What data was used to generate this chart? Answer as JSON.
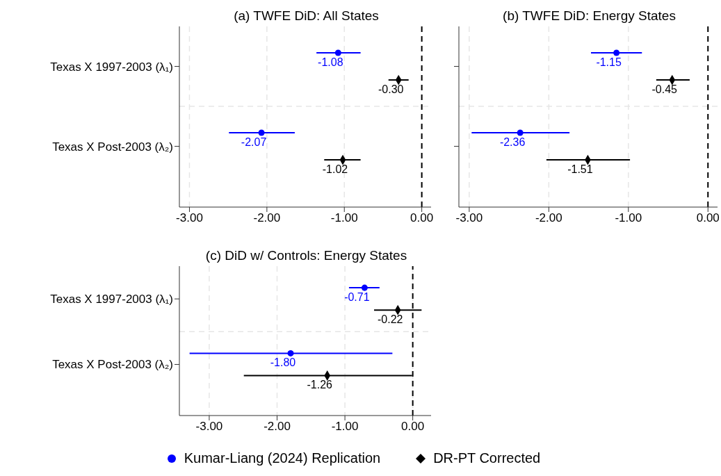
{
  "chart_data": [
    {
      "type": "scatter",
      "orientation": "horizontal",
      "title": "(a) TWFE DiD: All States",
      "categories": [
        "Texas X 1997-2003 (λ₁)",
        "Texas X Post-2003 (λ₂)"
      ],
      "xlim": [
        -3.13,
        0.12
      ],
      "xticks": [
        {
          "value": -3,
          "label": "-3.00"
        },
        {
          "value": -2,
          "label": "-2.00"
        },
        {
          "value": -1,
          "label": "-1.00"
        },
        {
          "value": 0,
          "label": "0.00"
        }
      ],
      "grid": true,
      "legend": "bottom",
      "ref_lines": [
        {
          "axis": "x",
          "value": 0,
          "color": "#000000",
          "line_style": "dashed"
        }
      ],
      "series": [
        {
          "name": "Kumar-Liang (2024) Replication",
          "color": "#0000ff",
          "marker": "circle",
          "values": [
            -1.08,
            -2.07
          ],
          "errors": [
            [
              -1.36,
              -0.79
            ],
            [
              -2.49,
              -1.64
            ]
          ],
          "value_labels": [
            "-1.08",
            "-2.07"
          ]
        },
        {
          "name": "DR-PT Corrected",
          "color": "#000000",
          "marker": "diamond",
          "values": [
            -0.3,
            -1.02
          ],
          "errors": [
            [
              -0.43,
              -0.17
            ],
            [
              -1.26,
              -0.79
            ]
          ],
          "value_labels": [
            "-0.30",
            "-1.02"
          ]
        }
      ]
    },
    {
      "type": "scatter",
      "orientation": "horizontal",
      "title": "(b) TWFE DiD: Energy States",
      "categories": [
        null,
        null
      ],
      "tick_labels": "x",
      "xlim": [
        -3.13,
        0.12
      ],
      "xticks": [
        {
          "value": -3,
          "label": "-3.00"
        },
        {
          "value": -2,
          "label": "-2.00"
        },
        {
          "value": -1,
          "label": "-1.00"
        },
        {
          "value": 0,
          "label": "0.00"
        }
      ],
      "grid": true,
      "ref_lines": [
        {
          "axis": "x",
          "value": 0,
          "color": "#000000",
          "line_style": "dashed"
        }
      ],
      "series": [
        {
          "color": "#0000ff",
          "marker": "circle",
          "values": [
            -1.15,
            -2.36
          ],
          "errors": [
            [
              -1.47,
              -0.83
            ],
            [
              -2.97,
              -1.74
            ]
          ],
          "value_labels": [
            "-1.15",
            "-2.36"
          ]
        },
        {
          "color": "#000000",
          "marker": "diamond",
          "values": [
            -0.45,
            -1.51
          ],
          "errors": [
            [
              -0.65,
              -0.23
            ],
            [
              -2.03,
              -0.98
            ]
          ],
          "value_labels": [
            "-0.45",
            "-1.51"
          ]
        }
      ]
    },
    {
      "type": "scatter",
      "orientation": "horizontal",
      "title": "(c) DiD w/ Controls: Energy States",
      "categories": [
        "Texas X 1997-2003 (λ₁)",
        "Texas X Post-2003 (λ₂)"
      ],
      "xlim": [
        -3.44,
        0.27
      ],
      "xticks": [
        {
          "value": -3,
          "label": "-3.00"
        },
        {
          "value": -2,
          "label": "-2.00"
        },
        {
          "value": -1,
          "label": "-1.00"
        },
        {
          "value": 0,
          "label": "0.00"
        }
      ],
      "grid": true,
      "ref_lines": [
        {
          "axis": "x",
          "value": 0,
          "color": "#000000",
          "line_style": "dashed"
        }
      ],
      "series": [
        {
          "color": "#0000ff",
          "marker": "circle",
          "values": [
            -0.71,
            -1.8
          ],
          "errors": [
            [
              -0.94,
              -0.49
            ],
            [
              -3.29,
              -0.3
            ]
          ],
          "value_labels": [
            "-0.71",
            "-1.80"
          ]
        },
        {
          "color": "#000000",
          "marker": "diamond",
          "values": [
            -0.22,
            -1.26
          ],
          "errors": [
            [
              -0.57,
              0.13
            ],
            [
              -2.49,
              -0.01
            ]
          ],
          "value_labels": [
            "-0.22",
            "-1.26"
          ]
        }
      ]
    }
  ]
}
